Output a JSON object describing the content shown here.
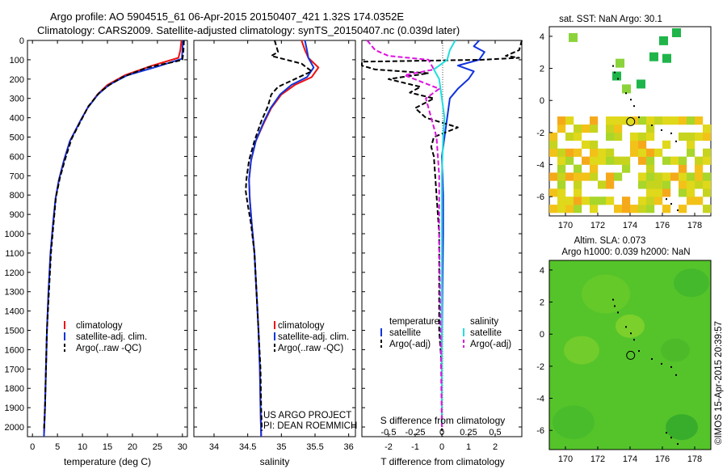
{
  "header": {
    "title_line1": "Argo profile: AO 5904515_61 06-Apr-2015 20150407_421 1.32S 174.0352E",
    "title_line2": "Climatology: CARS2009. Satellite-adjusted climatology: synTS_20150407.nc (0.039d later)"
  },
  "colors": {
    "climatology": "#ee1111",
    "satellite": "#1133dd",
    "argo": "#000000",
    "satellite_salinity": "#22dddd",
    "argo_salinity": "#dd11dd"
  },
  "chart_data": [
    {
      "type": "line",
      "id": "temperature",
      "xlabel": "temperature (deg C)",
      "ylim": [
        2050,
        0
      ],
      "xlim": [
        -1,
        31
      ],
      "xticks": [
        0,
        5,
        10,
        15,
        20,
        25,
        30
      ],
      "yticks": [
        0,
        100,
        200,
        300,
        400,
        500,
        600,
        700,
        800,
        900,
        1000,
        1100,
        1200,
        1300,
        1400,
        1500,
        1600,
        1700,
        1800,
        1900,
        2000
      ],
      "legend": [
        "climatology",
        "satellite-adj. clim.",
        "Argo(..raw -QC)"
      ],
      "series": [
        {
          "name": "climatology",
          "style": "solid",
          "points": [
            [
              29.8,
              0
            ],
            [
              29.6,
              50
            ],
            [
              29.2,
              90
            ],
            [
              24,
              130
            ],
            [
              18.5,
              180
            ],
            [
              15,
              230
            ],
            [
              13,
              280
            ],
            [
              11,
              350
            ],
            [
              9.5,
              420
            ],
            [
              7.5,
              520
            ],
            [
              6.3,
              620
            ],
            [
              5.3,
              720
            ],
            [
              4.6,
              820
            ],
            [
              4.1,
              950
            ],
            [
              3.6,
              1100
            ],
            [
              3.2,
              1300
            ],
            [
              2.9,
              1500
            ],
            [
              2.7,
              1700
            ],
            [
              2.5,
              1900
            ],
            [
              2.3,
              2050
            ]
          ]
        },
        {
          "name": "satellite-adj. clim.",
          "style": "solid",
          "points": [
            [
              30.1,
              0
            ],
            [
              30.0,
              50
            ],
            [
              29.9,
              95
            ],
            [
              25,
              135
            ],
            [
              19,
              180
            ],
            [
              15.3,
              230
            ],
            [
              13.1,
              280
            ],
            [
              11,
              350
            ],
            [
              9.5,
              420
            ],
            [
              7.5,
              520
            ],
            [
              6.3,
              620
            ],
            [
              5.3,
              720
            ],
            [
              4.6,
              820
            ],
            [
              4.1,
              950
            ],
            [
              3.6,
              1100
            ],
            [
              3.2,
              1300
            ],
            [
              2.9,
              1500
            ],
            [
              2.7,
              1700
            ],
            [
              2.5,
              1900
            ],
            [
              2.3,
              2050
            ]
          ]
        },
        {
          "name": "Argo(..raw -QC)",
          "style": "dashed",
          "points": [
            [
              30.3,
              0
            ],
            [
              30.2,
              60
            ],
            [
              30.0,
              100
            ],
            [
              28.5,
              110
            ],
            [
              23,
              140
            ],
            [
              18,
              190
            ],
            [
              15.4,
              230
            ],
            [
              13.4,
              270
            ],
            [
              11.2,
              340
            ],
            [
              9.6,
              420
            ],
            [
              7.8,
              510
            ],
            [
              6.6,
              610
            ],
            [
              5.5,
              710
            ],
            [
              4.7,
              810
            ],
            [
              4.2,
              950
            ],
            [
              3.7,
              1100
            ],
            [
              3.3,
              1300
            ],
            [
              2.9,
              1500
            ],
            [
              2.7,
              1700
            ],
            [
              2.5,
              1900
            ],
            [
              2.3,
              2020
            ]
          ]
        }
      ]
    },
    {
      "type": "line",
      "id": "salinity",
      "xlabel": "salinity",
      "ylim": [
        2050,
        0
      ],
      "xlim": [
        33.7,
        36.1
      ],
      "xticks": [
        34,
        34.5,
        35,
        35.5,
        36
      ],
      "xticklabels": [
        "34",
        "34.5",
        "35",
        "35.5",
        "36"
      ],
      "legend": [
        "climatology",
        "satellite-adj. clim.",
        "Argo(..raw -QC)"
      ],
      "series": [
        {
          "name": "climatology",
          "style": "solid",
          "points": [
            [
              35.3,
              0
            ],
            [
              35.35,
              50
            ],
            [
              35.4,
              90
            ],
            [
              35.55,
              140
            ],
            [
              35.45,
              190
            ],
            [
              35.2,
              230
            ],
            [
              35.0,
              280
            ],
            [
              34.85,
              350
            ],
            [
              34.75,
              420
            ],
            [
              34.62,
              520
            ],
            [
              34.55,
              620
            ],
            [
              34.52,
              720
            ],
            [
              34.53,
              820
            ],
            [
              34.56,
              950
            ],
            [
              34.6,
              1100
            ],
            [
              34.63,
              1300
            ],
            [
              34.66,
              1500
            ],
            [
              34.68,
              1700
            ],
            [
              34.69,
              1900
            ],
            [
              34.7,
              2050
            ]
          ]
        },
        {
          "name": "satellite-adj. clim.",
          "style": "solid",
          "points": [
            [
              35.35,
              0
            ],
            [
              35.38,
              50
            ],
            [
              35.4,
              90
            ],
            [
              35.48,
              140
            ],
            [
              35.38,
              190
            ],
            [
              35.15,
              230
            ],
            [
              34.98,
              280
            ],
            [
              34.84,
              350
            ],
            [
              34.74,
              420
            ],
            [
              34.62,
              520
            ],
            [
              34.55,
              620
            ],
            [
              34.52,
              720
            ],
            [
              34.53,
              820
            ],
            [
              34.56,
              950
            ],
            [
              34.6,
              1100
            ],
            [
              34.63,
              1300
            ],
            [
              34.66,
              1500
            ],
            [
              34.68,
              1700
            ],
            [
              34.69,
              1900
            ],
            [
              34.7,
              2050
            ]
          ]
        },
        {
          "name": "Argo(..raw -QC)",
          "style": "dashed",
          "points": [
            [
              34.9,
              0
            ],
            [
              34.95,
              60
            ],
            [
              34.85,
              80
            ],
            [
              35.3,
              120
            ],
            [
              35.45,
              160
            ],
            [
              35.2,
              200
            ],
            [
              34.95,
              240
            ],
            [
              34.85,
              280
            ],
            [
              34.8,
              340
            ],
            [
              34.7,
              420
            ],
            [
              34.6,
              520
            ],
            [
              34.52,
              620
            ],
            [
              34.48,
              720
            ],
            [
              34.47,
              780
            ],
            [
              34.5,
              850
            ],
            [
              34.55,
              950
            ],
            [
              34.6,
              1100
            ],
            [
              34.63,
              1300
            ],
            [
              34.66,
              1500
            ],
            [
              34.69,
              1700
            ],
            [
              34.7,
              1900
            ],
            [
              34.71,
              2020
            ]
          ]
        }
      ]
    },
    {
      "type": "line",
      "id": "difference",
      "xlabel": "T difference from climatology",
      "xlabel_top": "S difference from climatology",
      "ylim": [
        2050,
        0
      ],
      "xlim": [
        -3,
        3
      ],
      "xticks": [
        -2,
        -1,
        0,
        1,
        2
      ],
      "xticks_top": [
        -0.5,
        -0.25,
        0,
        0.25,
        0.5
      ],
      "xticklabels_top": [
        "-0.5",
        "-0.25",
        "0",
        "0.25",
        "0.5"
      ],
      "legend_temperature_title": "temperature",
      "legend_salinity_title": "salinity",
      "legend": [
        "satellite",
        "Argo(-adj)"
      ],
      "series": [
        {
          "name": "temperature satellite",
          "style": "solid",
          "points": [
            [
              1.4,
              0
            ],
            [
              1.2,
              30
            ],
            [
              1.6,
              60
            ],
            [
              1.4,
              100
            ],
            [
              0.6,
              130
            ],
            [
              1.2,
              160
            ],
            [
              1.0,
              200
            ],
            [
              0.6,
              250
            ],
            [
              0.3,
              300
            ],
            [
              0.2,
              400
            ],
            [
              0.1,
              500
            ],
            [
              0.0,
              600
            ],
            [
              0.05,
              800
            ],
            [
              0.05,
              1000
            ],
            [
              0.02,
              1300
            ],
            [
              0.0,
              1600
            ],
            [
              0.0,
              2000
            ]
          ]
        },
        {
          "name": "temperature Argo(-adj)",
          "style": "dashed",
          "points": [
            [
              3.0,
              0
            ],
            [
              2.9,
              50
            ],
            [
              2.4,
              80
            ],
            [
              2.9,
              90
            ],
            [
              1.5,
              100
            ],
            [
              -3.0,
              110
            ],
            [
              -3.0,
              130
            ],
            [
              -2.5,
              150
            ],
            [
              -0.5,
              170
            ],
            [
              -2.0,
              200
            ],
            [
              -0.8,
              240
            ],
            [
              -1.2,
              270
            ],
            [
              -0.3,
              300
            ],
            [
              -1.0,
              350
            ],
            [
              -0.6,
              400
            ],
            [
              0.6,
              450
            ],
            [
              -0.3,
              500
            ],
            [
              -0.4,
              550
            ],
            [
              -0.3,
              600
            ],
            [
              -0.2,
              800
            ],
            [
              -0.1,
              1000
            ],
            [
              -0.1,
              1300
            ],
            [
              -0.1,
              1500
            ],
            [
              0.0,
              1700
            ],
            [
              0.0,
              2020
            ]
          ]
        },
        {
          "name": "salinity satellite",
          "style": "solid",
          "points": [
            [
              0.5,
              0
            ],
            [
              0.3,
              50
            ],
            [
              0.2,
              100
            ],
            [
              -0.3,
              150
            ],
            [
              -0.1,
              200
            ],
            [
              0.0,
              300
            ],
            [
              0.1,
              400
            ],
            [
              0.05,
              500
            ],
            [
              0.0,
              700
            ],
            [
              0.0,
              1000
            ],
            [
              0.0,
              1500
            ],
            [
              0.0,
              2000
            ]
          ]
        },
        {
          "name": "salinity Argo(-adj)",
          "style": "dashed",
          "points": [
            [
              -2.8,
              0
            ],
            [
              -2.5,
              50
            ],
            [
              -2.0,
              80
            ],
            [
              -0.5,
              100
            ],
            [
              -0.3,
              150
            ],
            [
              -1.4,
              180
            ],
            [
              -0.1,
              250
            ],
            [
              -0.6,
              300
            ],
            [
              -0.4,
              400
            ],
            [
              -0.2,
              500
            ],
            [
              -0.1,
              700
            ],
            [
              -0.1,
              1000
            ],
            [
              -0.05,
              1500
            ],
            [
              0.0,
              2000
            ]
          ]
        }
      ]
    },
    {
      "type": "heatmap",
      "id": "sst_map",
      "title": "sat. SST: NaN  Argo: 30.1",
      "xlim": [
        169,
        179
      ],
      "ylim": [
        -7.2,
        4.6
      ],
      "xticks": [
        170,
        172,
        174,
        176,
        178
      ],
      "yticks": [
        4,
        2,
        0,
        -2,
        -4,
        -6
      ],
      "yticklabels": [
        "4",
        "2",
        "0",
        "-2",
        "-4",
        "-6"
      ],
      "argo_position": [
        174.0352,
        -1.32
      ]
    },
    {
      "type": "heatmap",
      "id": "sla_map",
      "title_line1": "Altim. SLA: 0.073",
      "title_line2": "Argo h1000: 0.039  h2000: NaN",
      "xlim": [
        169,
        179
      ],
      "ylim": [
        -7.2,
        4.6
      ],
      "xticks": [
        170,
        172,
        174,
        176,
        178
      ],
      "yticks": [
        4,
        2,
        0,
        -2,
        -4,
        -6
      ],
      "yticklabels": [
        "4",
        "2",
        "0",
        "-2",
        "-4",
        "-6"
      ],
      "argo_position": [
        174.0352,
        -1.32
      ]
    }
  ],
  "footer": {
    "project_line1": "US ARGO PROJECT",
    "project_line2": "PI: DEAN ROEMMICH",
    "stamp": "©IMOS 15-Apr-2015 20:39:57"
  }
}
